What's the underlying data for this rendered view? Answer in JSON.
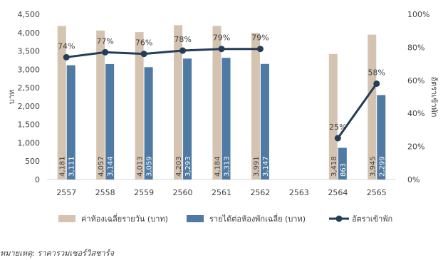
{
  "chart_data": {
    "type": "bar",
    "categories": [
      "2557",
      "2558",
      "2559",
      "2560",
      "2561",
      "2562",
      "2563",
      "2564",
      "2565"
    ],
    "series": [
      {
        "name": "ค่าห้องเฉลี่ยรายวัน (บาท)",
        "kind": "bar",
        "color": "#d5c3b1",
        "values": [
          4181,
          4057,
          4013,
          4203,
          4184,
          3991,
          null,
          3418,
          3945
        ],
        "labels": [
          "4,181",
          "4,057",
          "4,013",
          "4,203",
          "4,184",
          "3,991",
          "",
          "3,418",
          "3,945"
        ]
      },
      {
        "name": "รายได้ต่อห้องพักเฉลี่ย (บาท)",
        "kind": "bar",
        "color": "#4e7aa4",
        "values": [
          3111,
          3144,
          3059,
          3293,
          3313,
          3147,
          null,
          863,
          2299
        ],
        "labels": [
          "3,111",
          "3,144",
          "3,059",
          "3,293",
          "3,313",
          "3,147",
          "",
          "863",
          "2,299"
        ]
      },
      {
        "name": "อัตราเข้าพัก",
        "kind": "line",
        "axis": "right",
        "color": "#243d59",
        "values": [
          74,
          77,
          76,
          78,
          79,
          79,
          null,
          25,
          58
        ],
        "labels": [
          "74%",
          "77%",
          "76%",
          "78%",
          "79%",
          "79%",
          "",
          "25%",
          "58%"
        ]
      }
    ],
    "ylabel": "บาท",
    "y2label": "อัตราเข้าพัก",
    "ylim": [
      0,
      4500
    ],
    "y2lim": [
      0,
      100
    ],
    "yticks": [
      "0",
      "500",
      "1,000",
      "1,500",
      "2,000",
      "2,500",
      "3,000",
      "3,500",
      "4,000",
      "4,500"
    ],
    "y2ticks": [
      "0%",
      "20%",
      "40%",
      "60%",
      "80%",
      "100%"
    ],
    "grid": false,
    "legend_position": "bottom"
  },
  "note": "หมายเหตุ: ราคารวมเซอร์วิสชาร์จ"
}
